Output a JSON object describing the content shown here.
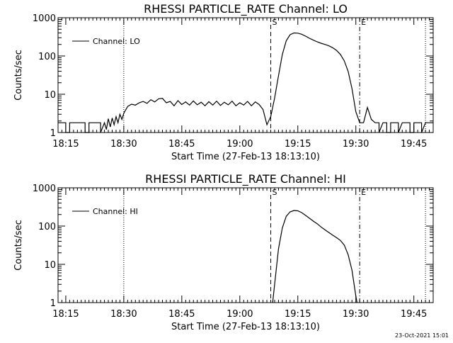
{
  "chart_data": [
    {
      "type": "line",
      "title": "RHESSI PARTICLE_RATE Channel: LO",
      "xlabel": "Start Time (27-Feb-13 18:13:10)",
      "ylabel": "Counts/sec",
      "yscale": "log",
      "ylim": [
        1,
        1000
      ],
      "xlim_minutes_from_1813": [
        0,
        97
      ],
      "x_tick_labels": [
        "18:15",
        "18:30",
        "18:45",
        "19:00",
        "19:15",
        "19:30",
        "19:45"
      ],
      "y_tick_labels": [
        "1",
        "10",
        "100",
        "1000"
      ],
      "legend": {
        "position": "top-left",
        "entries": [
          "Channel: LO"
        ]
      },
      "markers": [
        {
          "label": "S",
          "time": "19:08",
          "style": "dashed"
        },
        {
          "label": "E",
          "time": "19:31",
          "style": "dash-dot"
        }
      ],
      "dotted_lines": [
        "18:30",
        "19:48"
      ],
      "series": [
        {
          "name": "Channel: LO",
          "points": [
            [
              "18:13",
              1.8
            ],
            [
              "18:15",
              1.8
            ],
            [
              "18:15",
              1
            ],
            [
              "18:16",
              1
            ],
            [
              "18:16",
              1.8
            ],
            [
              "18:20",
              1.8
            ],
            [
              "18:20",
              1
            ],
            [
              "18:21",
              1
            ],
            [
              "18:21",
              1.8
            ],
            [
              "18:24",
              1.8
            ],
            [
              "18:24",
              1
            ],
            [
              "18:25",
              1.8
            ],
            [
              "18:25.5",
              1.2
            ],
            [
              "18:26",
              2.3
            ],
            [
              "18:26.5",
              1.4
            ],
            [
              "18:27",
              2.4
            ],
            [
              "18:27.5",
              1.6
            ],
            [
              "18:28",
              2.6
            ],
            [
              "18:28.5",
              1.8
            ],
            [
              "18:29",
              3.0
            ],
            [
              "18:29.5",
              2.2
            ],
            [
              "18:30",
              3.2
            ],
            [
              "18:31",
              4.8
            ],
            [
              "18:32",
              5.5
            ],
            [
              "18:33",
              5.2
            ],
            [
              "18:34",
              6.0
            ],
            [
              "18:35",
              6.5
            ],
            [
              "18:36",
              5.8
            ],
            [
              "18:37",
              7.2
            ],
            [
              "18:38",
              6.3
            ],
            [
              "18:39",
              7.6
            ],
            [
              "18:40",
              7.8
            ],
            [
              "18:41",
              6.0
            ],
            [
              "18:42",
              6.5
            ],
            [
              "18:43",
              5.0
            ],
            [
              "18:44",
              6.8
            ],
            [
              "18:45",
              5.4
            ],
            [
              "18:46",
              6.3
            ],
            [
              "18:47",
              5.2
            ],
            [
              "18:48",
              6.7
            ],
            [
              "18:49",
              5.3
            ],
            [
              "18:50",
              6.2
            ],
            [
              "18:51",
              5.0
            ],
            [
              "18:52",
              6.4
            ],
            [
              "18:53",
              5.2
            ],
            [
              "18:54",
              6.6
            ],
            [
              "18:55",
              5.1
            ],
            [
              "18:56",
              6.2
            ],
            [
              "18:57",
              5.3
            ],
            [
              "18:58",
              6.6
            ],
            [
              "18:59",
              5.0
            ],
            [
              "19:00",
              6.0
            ],
            [
              "19:01",
              5.2
            ],
            [
              "19:02",
              6.5
            ],
            [
              "19:03",
              5.0
            ],
            [
              "19:04",
              6.3
            ],
            [
              "19:05",
              5.4
            ],
            [
              "19:06",
              4.0
            ],
            [
              "19:07",
              1.6
            ],
            [
              "19:08",
              2.6
            ],
            [
              "19:09",
              8
            ],
            [
              "19:10",
              30
            ],
            [
              "19:11",
              110
            ],
            [
              "19:12",
              250
            ],
            [
              "19:13",
              360
            ],
            [
              "19:14",
              400
            ],
            [
              "19:15",
              395
            ],
            [
              "19:16",
              370
            ],
            [
              "19:17",
              330
            ],
            [
              "19:18",
              290
            ],
            [
              "19:19",
              260
            ],
            [
              "19:20",
              235
            ],
            [
              "19:21",
              215
            ],
            [
              "19:22",
              200
            ],
            [
              "19:23",
              185
            ],
            [
              "19:24",
              165
            ],
            [
              "19:25",
              140
            ],
            [
              "19:26",
              110
            ],
            [
              "19:27",
              75
            ],
            [
              "19:28",
              40
            ],
            [
              "19:29",
              14
            ],
            [
              "19:30",
              3.5
            ],
            [
              "19:31",
              1.8
            ],
            [
              "19:32",
              1.8
            ],
            [
              "19:33",
              4.5
            ],
            [
              "19:34",
              2.2
            ],
            [
              "19:35",
              1.8
            ],
            [
              "19:36",
              1.8
            ],
            [
              "19:36",
              1
            ],
            [
              "19:37",
              1.8
            ],
            [
              "19:38",
              1.8
            ],
            [
              "19:38",
              1
            ],
            [
              "19:39",
              1
            ],
            [
              "19:39",
              1.8
            ],
            [
              "19:41",
              1.8
            ],
            [
              "19:41",
              1
            ],
            [
              "19:42",
              1.8
            ],
            [
              "19:44",
              1.8
            ],
            [
              "19:44",
              1
            ],
            [
              "19:45",
              1
            ],
            [
              "19:45",
              1.8
            ],
            [
              "19:47",
              1.8
            ],
            [
              "19:47",
              1
            ],
            [
              "19:48",
              1.8
            ],
            [
              "19:50",
              1.8
            ]
          ]
        }
      ]
    },
    {
      "type": "line",
      "title": "RHESSI PARTICLE_RATE Channel: HI",
      "xlabel": "Start Time (27-Feb-13 18:13:10)",
      "ylabel": "Counts/sec",
      "yscale": "log",
      "ylim": [
        1,
        1000
      ],
      "xlim_minutes_from_1813": [
        0,
        97
      ],
      "x_tick_labels": [
        "18:15",
        "18:30",
        "18:45",
        "19:00",
        "19:15",
        "19:30",
        "19:45"
      ],
      "y_tick_labels": [
        "1",
        "10",
        "100",
        "1000"
      ],
      "legend": {
        "position": "top-left",
        "entries": [
          "Channel: HI"
        ]
      },
      "markers": [
        {
          "label": "S",
          "time": "19:08",
          "style": "dashed"
        },
        {
          "label": "E",
          "time": "19:31",
          "style": "dash-dot"
        }
      ],
      "dotted_lines": [
        "18:30",
        "19:48"
      ],
      "series": [
        {
          "name": "Channel: HI",
          "points": [
            [
              "19:08.5",
              1
            ],
            [
              "19:09",
              3
            ],
            [
              "19:10",
              25
            ],
            [
              "19:11",
              90
            ],
            [
              "19:12",
              180
            ],
            [
              "19:13",
              235
            ],
            [
              "19:14",
              255
            ],
            [
              "19:15",
              250
            ],
            [
              "19:16",
              225
            ],
            [
              "19:17",
              190
            ],
            [
              "19:18",
              160
            ],
            [
              "19:19",
              135
            ],
            [
              "19:20",
              115
            ],
            [
              "19:21",
              95
            ],
            [
              "19:22",
              80
            ],
            [
              "19:23",
              68
            ],
            [
              "19:24",
              58
            ],
            [
              "19:25",
              50
            ],
            [
              "19:26",
              42
            ],
            [
              "19:27",
              32
            ],
            [
              "19:28",
              18
            ],
            [
              "19:29",
              7
            ],
            [
              "19:30",
              1.5
            ],
            [
              "19:30.3",
              1
            ]
          ]
        }
      ]
    }
  ],
  "footer_stamp": "23-Oct-2021 15:01"
}
